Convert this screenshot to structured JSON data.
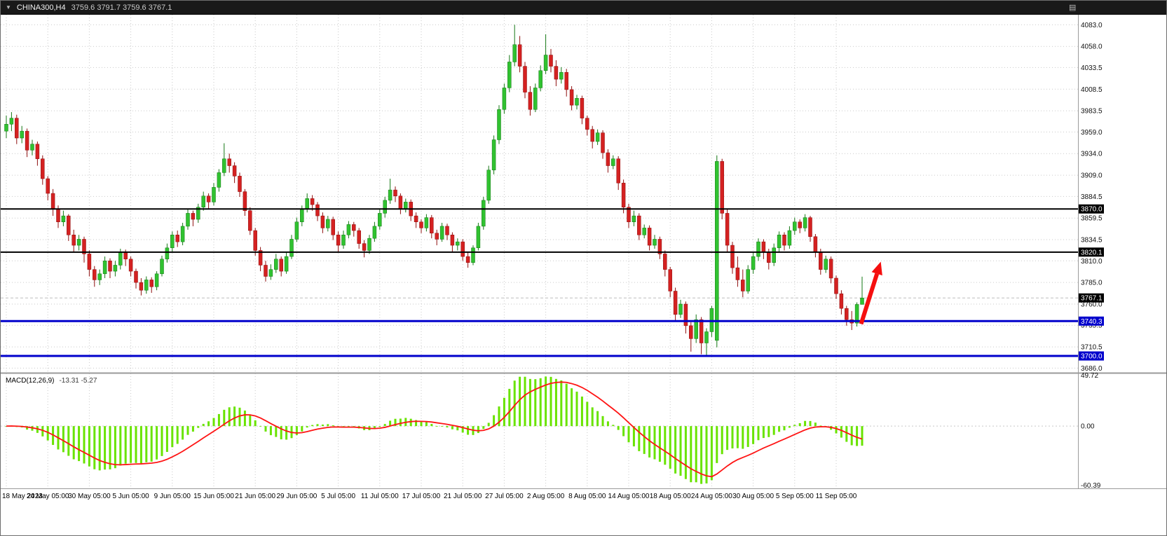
{
  "header": {
    "symbol_period": "CHINA300,H4",
    "ohlc_text": "3759.6 3791.7 3759.6 3767.1",
    "dropdown_icon": "▼",
    "menu_icon": "▤"
  },
  "colors": {
    "background": "#FFFFFF",
    "topbar_bg": "#191919",
    "grid": "#C9C9C9",
    "separator": "#9A9A9A",
    "current_price_line": "#BDBDBD",
    "axis_text": "#111111"
  },
  "chart_data": {
    "type": "candlestick",
    "symbol": "CHINA300",
    "timeframe": "H4",
    "title": "CHINA300,H4 3759.6 3791.7 3759.6 3767.1",
    "ohlc_format": [
      "open",
      "high",
      "low",
      "close"
    ],
    "x_label_candle_step": 8,
    "x_labels": [
      "18 May 2023",
      "24 May 05:00",
      "30 May 05:00",
      "5 Jun 05:00",
      "9 Jun 05:00",
      "15 Jun 05:00",
      "21 Jun 05:00",
      "29 Jun 05:00",
      "5 Jul 05:00",
      "11 Jul 05:00",
      "17 Jul 05:00",
      "21 Jul 05:00",
      "27 Jul 05:00",
      "2 Aug 05:00",
      "8 Aug 05:00",
      "14 Aug 05:00",
      "18 Aug 05:00",
      "24 Aug 05:00",
      "30 Aug 05:00",
      "5 Sep 05:00",
      "11 Sep 05:00"
    ],
    "y_ticks": [
      4083.0,
      4058.0,
      4033.5,
      4008.5,
      3983.5,
      3959.0,
      3934.0,
      3909.0,
      3884.5,
      3859.5,
      3834.5,
      3810.0,
      3785.0,
      3760.0,
      3735.5,
      3710.5,
      3686.0
    ],
    "y_range": {
      "top": 4093.0,
      "bottom": 3681.4
    },
    "candle_colors": {
      "up": {
        "fill": "#30C230",
        "stroke": "#157815"
      },
      "down": {
        "fill": "#D42121",
        "stroke": "#8F0F0F"
      }
    },
    "candles": [
      [
        3960,
        3978,
        3952,
        3968
      ],
      [
        3968,
        3982,
        3960,
        3975
      ],
      [
        3975,
        3979,
        3945,
        3952
      ],
      [
        3952,
        3966,
        3946,
        3960
      ],
      [
        3960,
        3963,
        3930,
        3938
      ],
      [
        3938,
        3950,
        3932,
        3945
      ],
      [
        3945,
        3948,
        3920,
        3928
      ],
      [
        3928,
        3932,
        3898,
        3905
      ],
      [
        3905,
        3908,
        3880,
        3888
      ],
      [
        3888,
        3893,
        3862,
        3870
      ],
      [
        3870,
        3874,
        3848,
        3855
      ],
      [
        3855,
        3868,
        3850,
        3862
      ],
      [
        3862,
        3864,
        3833,
        3840
      ],
      [
        3840,
        3846,
        3820,
        3828
      ],
      [
        3828,
        3840,
        3822,
        3835
      ],
      [
        3835,
        3838,
        3808,
        3818
      ],
      [
        3818,
        3822,
        3792,
        3800
      ],
      [
        3800,
        3804,
        3780,
        3788
      ],
      [
        3788,
        3800,
        3782,
        3795
      ],
      [
        3795,
        3815,
        3790,
        3810
      ],
      [
        3810,
        3813,
        3790,
        3798
      ],
      [
        3798,
        3810,
        3792,
        3805
      ],
      [
        3805,
        3824,
        3800,
        3820
      ],
      [
        3820,
        3823,
        3804,
        3812
      ],
      [
        3812,
        3815,
        3792,
        3798
      ],
      [
        3798,
        3801,
        3778,
        3785
      ],
      [
        3785,
        3790,
        3770,
        3776
      ],
      [
        3776,
        3792,
        3772,
        3788
      ],
      [
        3788,
        3791,
        3773,
        3780
      ],
      [
        3780,
        3798,
        3776,
        3795
      ],
      [
        3795,
        3816,
        3792,
        3812
      ],
      [
        3812,
        3830,
        3808,
        3825
      ],
      [
        3825,
        3844,
        3820,
        3840
      ],
      [
        3840,
        3845,
        3826,
        3832
      ],
      [
        3832,
        3854,
        3828,
        3850
      ],
      [
        3850,
        3870,
        3846,
        3865
      ],
      [
        3865,
        3868,
        3850,
        3858
      ],
      [
        3858,
        3876,
        3854,
        3872
      ],
      [
        3872,
        3890,
        3868,
        3885
      ],
      [
        3885,
        3888,
        3870,
        3878
      ],
      [
        3878,
        3900,
        3874,
        3895
      ],
      [
        3895,
        3916,
        3890,
        3912
      ],
      [
        3912,
        3946,
        3908,
        3928
      ],
      [
        3928,
        3934,
        3912,
        3920
      ],
      [
        3920,
        3924,
        3900,
        3908
      ],
      [
        3908,
        3912,
        3884,
        3890
      ],
      [
        3890,
        3893,
        3862,
        3868
      ],
      [
        3868,
        3872,
        3840,
        3845
      ],
      [
        3845,
        3848,
        3816,
        3822
      ],
      [
        3822,
        3826,
        3798,
        3805
      ],
      [
        3805,
        3810,
        3786,
        3792
      ],
      [
        3792,
        3806,
        3788,
        3800
      ],
      [
        3800,
        3818,
        3796,
        3812
      ],
      [
        3812,
        3815,
        3792,
        3798
      ],
      [
        3798,
        3820,
        3795,
        3815
      ],
      [
        3815,
        3840,
        3812,
        3835
      ],
      [
        3835,
        3860,
        3832,
        3855
      ],
      [
        3855,
        3874,
        3850,
        3870
      ],
      [
        3870,
        3888,
        3866,
        3882
      ],
      [
        3882,
        3886,
        3868,
        3875
      ],
      [
        3875,
        3878,
        3856,
        3862
      ],
      [
        3862,
        3866,
        3842,
        3848
      ],
      [
        3848,
        3862,
        3844,
        3858
      ],
      [
        3858,
        3861,
        3834,
        3840
      ],
      [
        3840,
        3844,
        3820,
        3828
      ],
      [
        3828,
        3845,
        3824,
        3840
      ],
      [
        3840,
        3856,
        3836,
        3852
      ],
      [
        3852,
        3855,
        3838,
        3845
      ],
      [
        3845,
        3848,
        3824,
        3830
      ],
      [
        3830,
        3834,
        3814,
        3822
      ],
      [
        3822,
        3840,
        3818,
        3836
      ],
      [
        3836,
        3855,
        3832,
        3850
      ],
      [
        3850,
        3870,
        3846,
        3865
      ],
      [
        3865,
        3884,
        3860,
        3880
      ],
      [
        3880,
        3905,
        3876,
        3892
      ],
      [
        3892,
        3896,
        3878,
        3885
      ],
      [
        3885,
        3888,
        3864,
        3870
      ],
      [
        3870,
        3882,
        3866,
        3878
      ],
      [
        3878,
        3881,
        3856,
        3862
      ],
      [
        3862,
        3866,
        3848,
        3855
      ],
      [
        3855,
        3858,
        3842,
        3848
      ],
      [
        3848,
        3864,
        3844,
        3860
      ],
      [
        3860,
        3863,
        3836,
        3842
      ],
      [
        3842,
        3846,
        3828,
        3835
      ],
      [
        3835,
        3854,
        3832,
        3850
      ],
      [
        3850,
        3853,
        3834,
        3840
      ],
      [
        3840,
        3843,
        3820,
        3828
      ],
      [
        3828,
        3836,
        3822,
        3832
      ],
      [
        3832,
        3835,
        3810,
        3815
      ],
      [
        3815,
        3820,
        3802,
        3808
      ],
      [
        3808,
        3828,
        3805,
        3825
      ],
      [
        3825,
        3854,
        3822,
        3850
      ],
      [
        3850,
        3884,
        3846,
        3880
      ],
      [
        3880,
        3920,
        3876,
        3915
      ],
      [
        3915,
        3955,
        3910,
        3950
      ],
      [
        3950,
        3990,
        3945,
        3985
      ],
      [
        3985,
        4015,
        3980,
        4010
      ],
      [
        4010,
        4048,
        4005,
        4040
      ],
      [
        4040,
        4083,
        4035,
        4060
      ],
      [
        4060,
        4070,
        4028,
        4035
      ],
      [
        4035,
        4040,
        3998,
        4005
      ],
      [
        4005,
        4012,
        3978,
        3985
      ],
      [
        3985,
        4015,
        3982,
        4010
      ],
      [
        4010,
        4036,
        4006,
        4030
      ],
      [
        4030,
        4072,
        4026,
        4048
      ],
      [
        4048,
        4055,
        4028,
        4035
      ],
      [
        4035,
        4042,
        4012,
        4020
      ],
      [
        4020,
        4034,
        4015,
        4028
      ],
      [
        4028,
        4032,
        4000,
        4008
      ],
      [
        4008,
        4012,
        3984,
        3990
      ],
      [
        3990,
        4002,
        3985,
        3998
      ],
      [
        3998,
        4001,
        3968,
        3975
      ],
      [
        3975,
        3978,
        3955,
        3962
      ],
      [
        3962,
        3966,
        3940,
        3948
      ],
      [
        3948,
        3962,
        3944,
        3958
      ],
      [
        3958,
        3961,
        3928,
        3935
      ],
      [
        3935,
        3939,
        3912,
        3920
      ],
      [
        3920,
        3932,
        3916,
        3928
      ],
      [
        3928,
        3931,
        3892,
        3900
      ],
      [
        3900,
        3904,
        3865,
        3872
      ],
      [
        3872,
        3876,
        3848,
        3855
      ],
      [
        3855,
        3868,
        3850,
        3862
      ],
      [
        3862,
        3865,
        3834,
        3840
      ],
      [
        3840,
        3852,
        3836,
        3848
      ],
      [
        3848,
        3851,
        3822,
        3828
      ],
      [
        3828,
        3840,
        3824,
        3835
      ],
      [
        3835,
        3838,
        3812,
        3818
      ],
      [
        3818,
        3822,
        3792,
        3800
      ],
      [
        3800,
        3803,
        3768,
        3775
      ],
      [
        3775,
        3779,
        3740,
        3748
      ],
      [
        3748,
        3765,
        3744,
        3760
      ],
      [
        3760,
        3763,
        3726,
        3735
      ],
      [
        3735,
        3739,
        3705,
        3720
      ],
      [
        3720,
        3748,
        3715,
        3742
      ],
      [
        3742,
        3745,
        3702,
        3715
      ],
      [
        3715,
        3732,
        3700,
        3728
      ],
      [
        3728,
        3758,
        3722,
        3755
      ],
      [
        3718,
        3932,
        3710,
        3925
      ],
      [
        3925,
        3928,
        3858,
        3865
      ],
      [
        3865,
        3870,
        3820,
        3828
      ],
      [
        3828,
        3832,
        3795,
        3802
      ],
      [
        3802,
        3815,
        3780,
        3788
      ],
      [
        3788,
        3800,
        3768,
        3775
      ],
      [
        3775,
        3805,
        3772,
        3800
      ],
      [
        3800,
        3820,
        3795,
        3815
      ],
      [
        3815,
        3836,
        3810,
        3832
      ],
      [
        3832,
        3835,
        3812,
        3820
      ],
      [
        3820,
        3824,
        3800,
        3808
      ],
      [
        3808,
        3830,
        3804,
        3825
      ],
      [
        3825,
        3844,
        3820,
        3840
      ],
      [
        3840,
        3843,
        3822,
        3828
      ],
      [
        3828,
        3850,
        3824,
        3845
      ],
      [
        3845,
        3860,
        3840,
        3855
      ],
      [
        3855,
        3858,
        3842,
        3848
      ],
      [
        3848,
        3864,
        3844,
        3860
      ],
      [
        3860,
        3862,
        3832,
        3838
      ],
      [
        3838,
        3841,
        3814,
        3820
      ],
      [
        3820,
        3824,
        3794,
        3800
      ],
      [
        3800,
        3816,
        3796,
        3812
      ],
      [
        3812,
        3815,
        3784,
        3790
      ],
      [
        3790,
        3793,
        3766,
        3772
      ],
      [
        3772,
        3776,
        3748,
        3755
      ],
      [
        3755,
        3758,
        3735,
        3742
      ],
      [
        3742,
        3752,
        3730,
        3738
      ],
      [
        3738,
        3762,
        3734,
        3759.6
      ],
      [
        3759.6,
        3791.7,
        3759.6,
        3767.1
      ]
    ],
    "hlines": [
      {
        "label": "3870.0",
        "price": 3870.0,
        "color": "#000000",
        "width": 2
      },
      {
        "label": "3820.1",
        "price": 3820.1,
        "color": "#000000",
        "width": 2
      },
      {
        "label": "3740.3",
        "price": 3740.3,
        "color": "#0000CC",
        "width": 3
      },
      {
        "label": "3700.0",
        "price": 3700.0,
        "color": "#0000CC",
        "width": 3
      }
    ],
    "current_price": {
      "label": "3767.1",
      "price": 3767.1,
      "badge_color": "#000000"
    },
    "arrow": {
      "color": "#F50F0F",
      "from": {
        "index": 164.8,
        "price": 3737
      },
      "to": {
        "index": 168.6,
        "price": 3809
      }
    },
    "macd": {
      "label": "MACD(12,26,9)",
      "values_text": "-13.31 -5.27",
      "macd_value": -13.31,
      "signal_value": -5.27,
      "fast": 12,
      "slow": 26,
      "signal_period": 9,
      "axis_labels": [
        "49.72",
        "0.00",
        "-60.39"
      ],
      "axis_max": 49.72,
      "axis_min": -60.39,
      "histogram_color": "#69E300",
      "signal_color": "#FF1414"
    }
  }
}
